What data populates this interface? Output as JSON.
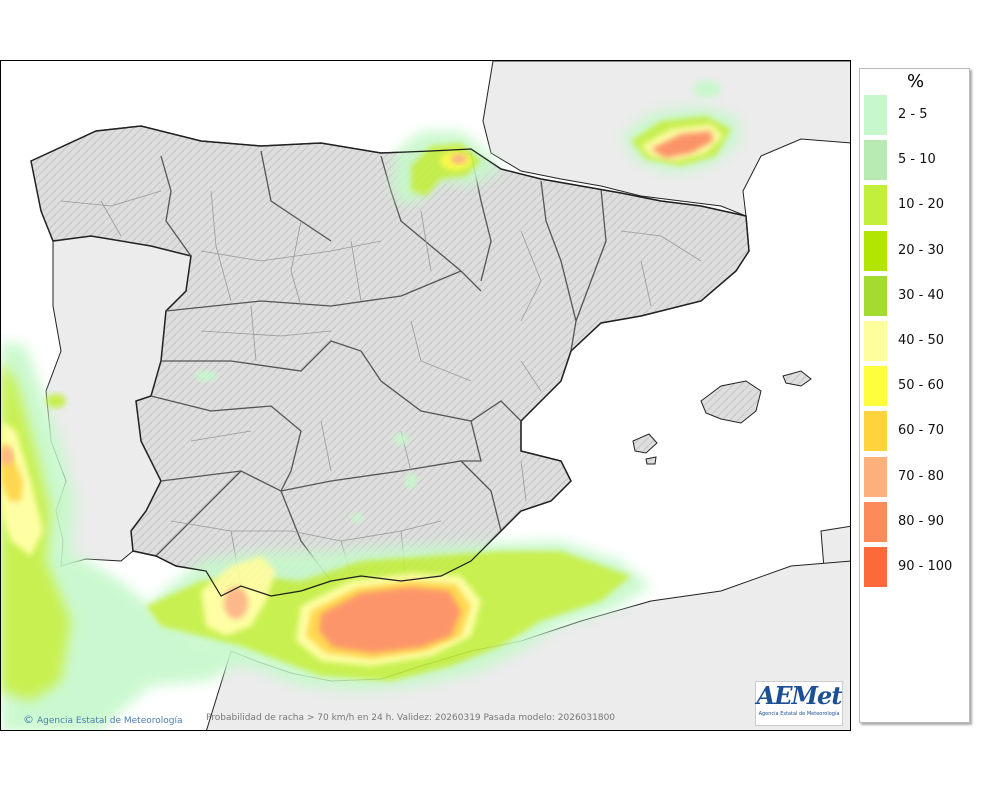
{
  "map": {
    "caption": "Probabilidad de racha > 70 km/h en 24 h. Validez: 20260319 Pasada modelo: 2026031800",
    "agency_credit": "Agencia Estatal de Meteorología",
    "copyright_symbol": "©",
    "logo_text": "AEMet",
    "logo_subtext": "Agencia Estatal de Meteorología",
    "colors": {
      "sea": "#ffffff",
      "foreign_land": "#ececec",
      "spain_land": "#dcdcdc",
      "coast": "#222222",
      "regional_border": "#555555",
      "provincial_border": "#999999"
    }
  },
  "legend": {
    "unit": "%",
    "items": [
      {
        "label": "2 - 5",
        "color": "#c6f8cb"
      },
      {
        "label": "5 - 10",
        "color": "#b7ebb3"
      },
      {
        "label": "10 - 20",
        "color": "#c2ef3c"
      },
      {
        "label": "20 - 30",
        "color": "#b2e600"
      },
      {
        "label": "30 - 40",
        "color": "#a3db2e"
      },
      {
        "label": "40 - 50",
        "color": "#fefe9a"
      },
      {
        "label": "50 - 60",
        "color": "#fefe3c"
      },
      {
        "label": "60 - 70",
        "color": "#fed33c"
      },
      {
        "label": "70 - 80",
        "color": "#fdb07c"
      },
      {
        "label": "80 - 90",
        "color": "#fd8a5a"
      },
      {
        "label": "90 - 100",
        "color": "#fd6a3a"
      }
    ]
  }
}
